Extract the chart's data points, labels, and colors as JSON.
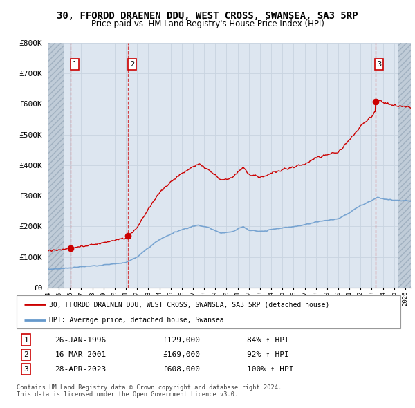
{
  "title": "30, FFORDD DRAENEN DDU, WEST CROSS, SWANSEA, SA3 5RP",
  "subtitle": "Price paid vs. HM Land Registry's House Price Index (HPI)",
  "ylabel_ticks": [
    "£0",
    "£100K",
    "£200K",
    "£300K",
    "£400K",
    "£500K",
    "£600K",
    "£700K",
    "£800K"
  ],
  "ytick_values": [
    0,
    100000,
    200000,
    300000,
    400000,
    500000,
    600000,
    700000,
    800000
  ],
  "ylim": [
    0,
    800000
  ],
  "xlim_start": 1994.0,
  "xlim_end": 2026.5,
  "hatch_left_end": 1995.5,
  "hatch_right_start": 2025.4,
  "transactions": [
    {
      "id": 1,
      "date_num": 1996.07,
      "price": 129000,
      "date_str": "26-JAN-1996",
      "price_str": "£129,000",
      "pct": "84%",
      "arrow": "↑"
    },
    {
      "id": 2,
      "date_num": 2001.21,
      "price": 169000,
      "date_str": "16-MAR-2001",
      "price_str": "£169,000",
      "pct": "92%",
      "arrow": "↑"
    },
    {
      "id": 3,
      "date_num": 2023.32,
      "price": 608000,
      "date_str": "28-APR-2023",
      "price_str": "£608,000",
      "pct": "100%",
      "arrow": "↑"
    }
  ],
  "property_color": "#cc0000",
  "hpi_color": "#6699cc",
  "background_solid_color": "#dde6f0",
  "hatch_color": "#c0ccd8",
  "grid_color": "#c8d4e0",
  "legend_property": "30, FFORDD DRAENEN DDU, WEST CROSS, SWANSEA, SA3 5RP (detached house)",
  "legend_hpi": "HPI: Average price, detached house, Swansea",
  "footer1": "Contains HM Land Registry data © Crown copyright and database right 2024.",
  "footer2": "This data is licensed under the Open Government Licence v3.0."
}
